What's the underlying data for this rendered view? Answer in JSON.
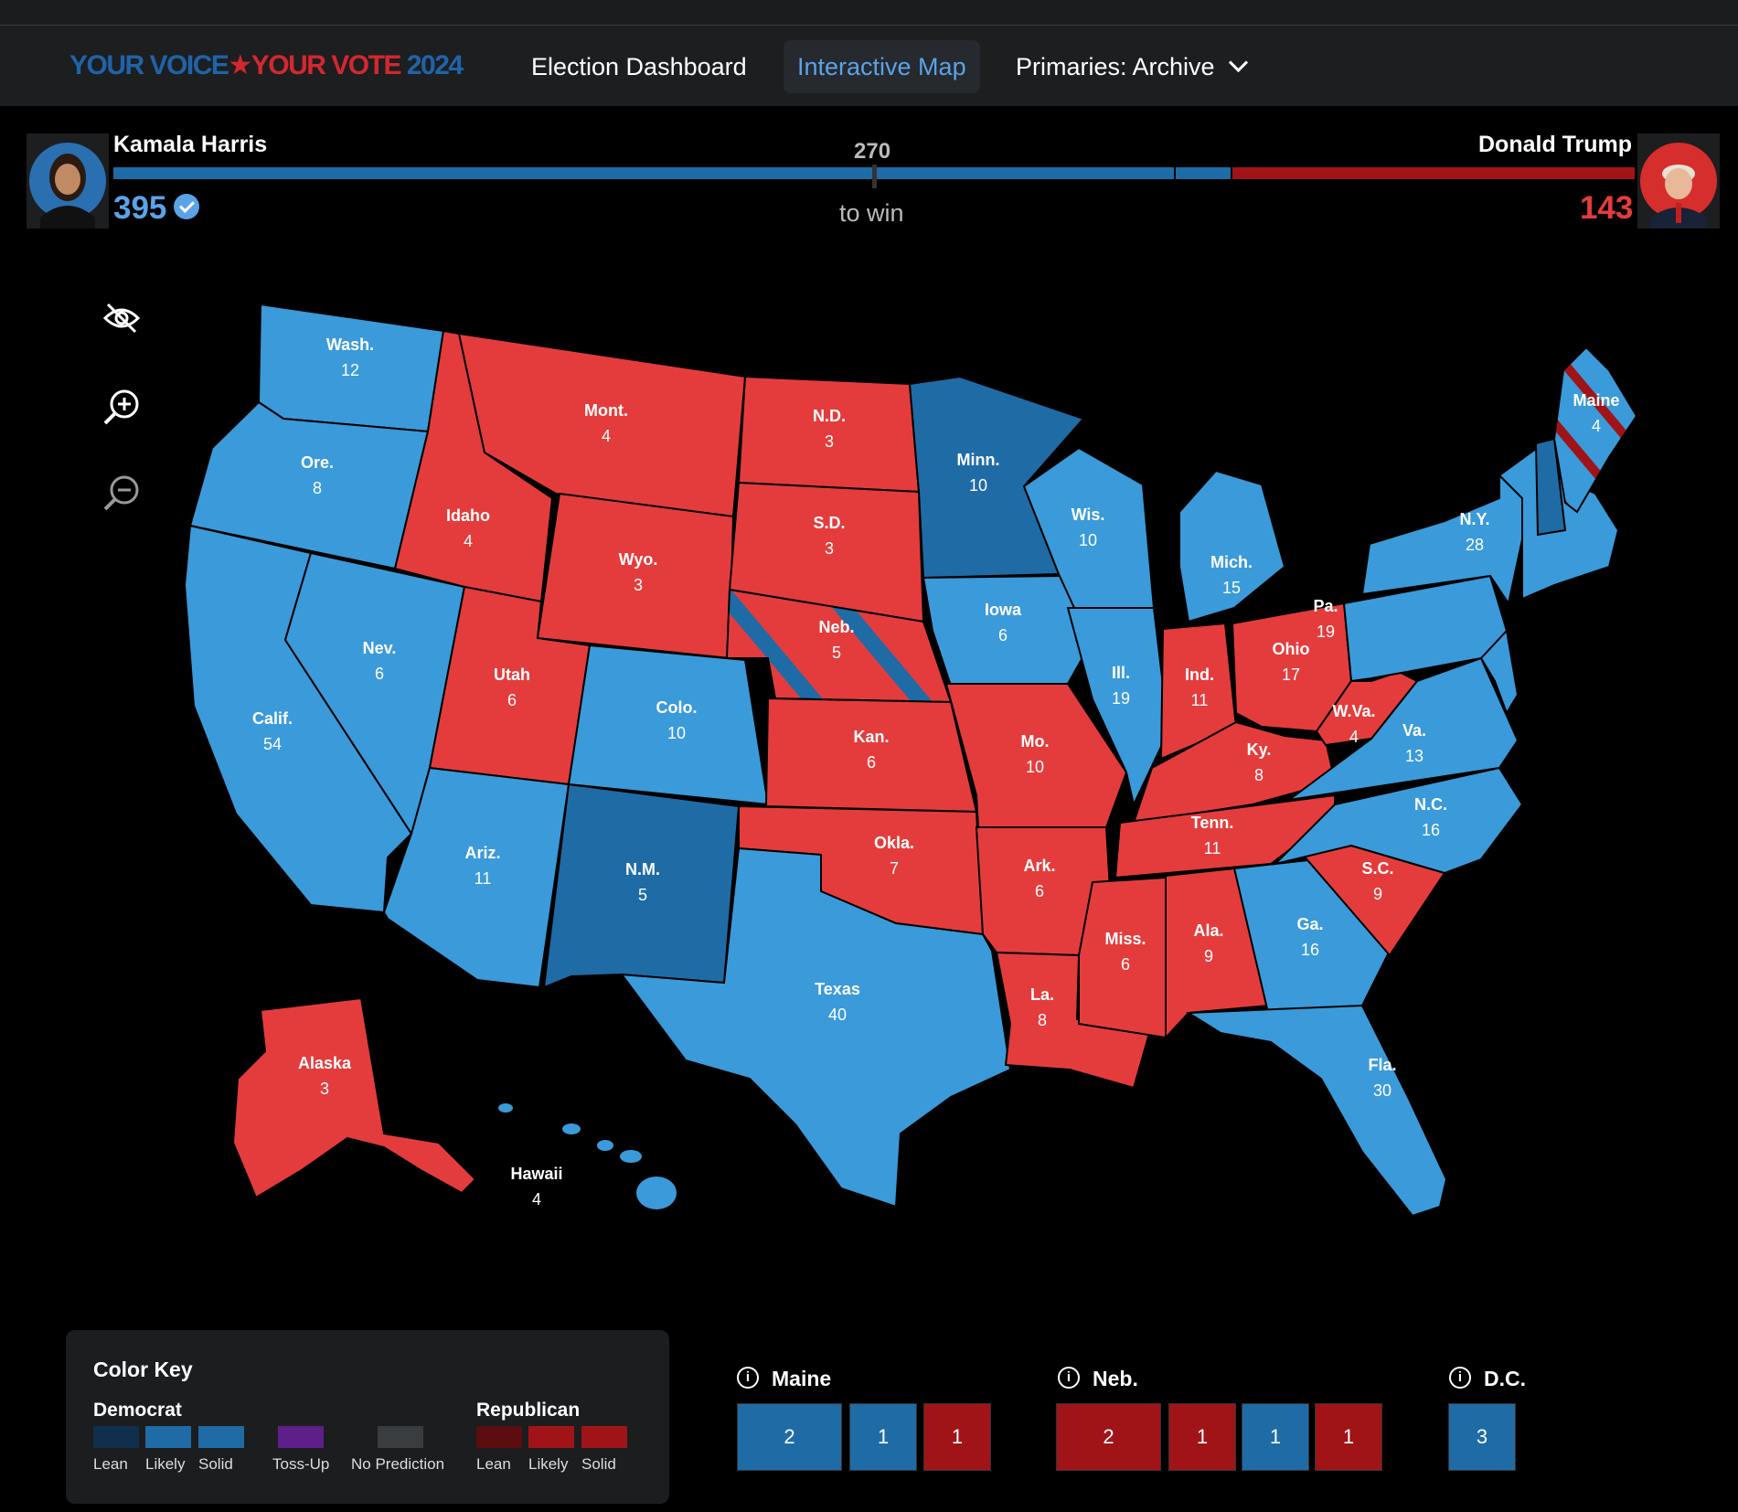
{
  "nav": {
    "logo_part1": "YOUR VOICE",
    "logo_star": "★",
    "logo_part2": "YOUR VOTE",
    "logo_year": "2024",
    "links": [
      "Election Dashboard",
      "Interactive Map",
      "Primaries: Archive"
    ],
    "active_link": "Interactive Map"
  },
  "scoreboard": {
    "dem": {
      "name": "Kamala Harris",
      "ev": "395",
      "winner": true
    },
    "rep": {
      "name": "Donald Trump",
      "ev": "143"
    },
    "threshold": "270",
    "threshold_label": "to win"
  },
  "tools": [
    "hide-labels-icon",
    "zoom-in-icon",
    "zoom-out-icon"
  ],
  "colors": {
    "dem_solid": "#3b9ad9",
    "dem_likely": "#1f6ba6",
    "dem_lean": "#0f2f4d",
    "rep_solid": "#e43c3c",
    "rep_likely": "#a01418",
    "rep_lean": "#5b0d10",
    "tossup": "#5e1f8a",
    "no_prediction": "#3a3d40"
  },
  "states": [
    {
      "abbr": "Wash.",
      "ev": "12"
    },
    {
      "abbr": "Ore.",
      "ev": "8"
    },
    {
      "abbr": "Calif.",
      "ev": "54"
    },
    {
      "abbr": "Idaho",
      "ev": "4"
    },
    {
      "abbr": "Nev.",
      "ev": "6"
    },
    {
      "abbr": "Mont.",
      "ev": "4"
    },
    {
      "abbr": "Wyo.",
      "ev": "3"
    },
    {
      "abbr": "Utah",
      "ev": "6"
    },
    {
      "abbr": "Ariz.",
      "ev": "11"
    },
    {
      "abbr": "Colo.",
      "ev": "10"
    },
    {
      "abbr": "N.M.",
      "ev": "5"
    },
    {
      "abbr": "N.D.",
      "ev": "3"
    },
    {
      "abbr": "S.D.",
      "ev": "3"
    },
    {
      "abbr": "Neb.",
      "ev": "5"
    },
    {
      "abbr": "Kan.",
      "ev": "6"
    },
    {
      "abbr": "Okla.",
      "ev": "7"
    },
    {
      "abbr": "Texas",
      "ev": "40"
    },
    {
      "abbr": "Minn.",
      "ev": "10"
    },
    {
      "abbr": "Iowa",
      "ev": "6"
    },
    {
      "abbr": "Mo.",
      "ev": "10"
    },
    {
      "abbr": "Ark.",
      "ev": "6"
    },
    {
      "abbr": "La.",
      "ev": "8"
    },
    {
      "abbr": "Wis.",
      "ev": "10"
    },
    {
      "abbr": "Ill.",
      "ev": "19"
    },
    {
      "abbr": "Mich.",
      "ev": "15"
    },
    {
      "abbr": "Ind.",
      "ev": "11"
    },
    {
      "abbr": "Ohio",
      "ev": "17"
    },
    {
      "abbr": "Ky.",
      "ev": "8"
    },
    {
      "abbr": "Tenn.",
      "ev": "11"
    },
    {
      "abbr": "Miss.",
      "ev": "6"
    },
    {
      "abbr": "Ala.",
      "ev": "9"
    },
    {
      "abbr": "Ga.",
      "ev": "16"
    },
    {
      "abbr": "Fla.",
      "ev": "30"
    },
    {
      "abbr": "S.C.",
      "ev": "9"
    },
    {
      "abbr": "N.C.",
      "ev": "16"
    },
    {
      "abbr": "Va.",
      "ev": "13"
    },
    {
      "abbr": "W.Va.",
      "ev": "4"
    },
    {
      "abbr": "Pa.",
      "ev": "19"
    },
    {
      "abbr": "N.Y.",
      "ev": "28"
    },
    {
      "abbr": "Maine",
      "ev": "4"
    },
    {
      "abbr": "Alaska",
      "ev": "3"
    },
    {
      "abbr": "Hawaii",
      "ev": "4"
    }
  ],
  "color_key": {
    "title": "Color Key",
    "dem_group": "Democrat",
    "rep_group": "Republican",
    "labels": [
      "Lean",
      "Likely",
      "Solid",
      "Toss-Up",
      "No Prediction",
      "Lean",
      "Likely",
      "Solid"
    ]
  },
  "splits": [
    {
      "name": "Maine",
      "boxes": [
        "2",
        "1",
        "1"
      ]
    },
    {
      "name": "Neb.",
      "boxes": [
        "2",
        "1",
        "1",
        "1"
      ]
    },
    {
      "name": "D.C.",
      "boxes": [
        "3"
      ]
    }
  ]
}
